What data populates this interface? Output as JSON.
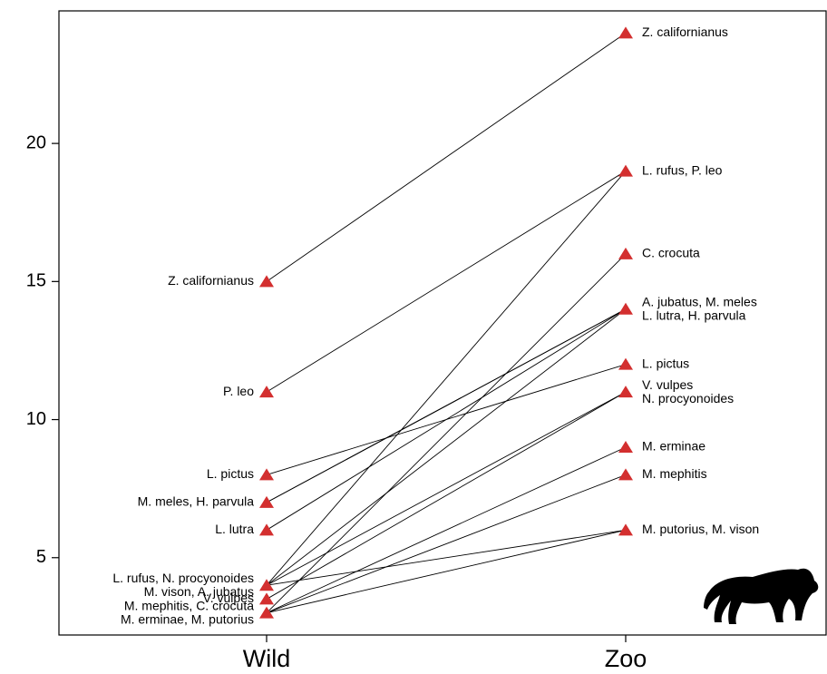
{
  "chart_data": {
    "type": "slope",
    "categories": [
      "Wild",
      "Zoo"
    ],
    "ylim": [
      2.2,
      24.8
    ],
    "yticks": [
      5,
      10,
      15,
      20
    ],
    "marker_color": "#d32f2f",
    "series": [
      {
        "values": [
          15,
          24
        ]
      },
      {
        "values": [
          11,
          19
        ]
      },
      {
        "values": [
          8,
          12
        ]
      },
      {
        "values": [
          7,
          14
        ]
      },
      {
        "values": [
          7,
          14
        ]
      },
      {
        "values": [
          6,
          14
        ]
      },
      {
        "values": [
          4,
          19
        ]
      },
      {
        "values": [
          4,
          11
        ]
      },
      {
        "values": [
          4,
          6
        ]
      },
      {
        "values": [
          4,
          14
        ]
      },
      {
        "values": [
          3.5,
          11
        ]
      },
      {
        "values": [
          3,
          8
        ]
      },
      {
        "values": [
          3,
          16
        ]
      },
      {
        "values": [
          3,
          9
        ]
      },
      {
        "values": [
          3,
          6
        ]
      }
    ],
    "points": [
      [
        {
          "value": 15,
          "labels": [
            "Z. californianus"
          ]
        },
        {
          "value": 11,
          "labels": [
            "P. leo"
          ]
        },
        {
          "value": 8,
          "labels": [
            "L. pictus"
          ]
        },
        {
          "value": 7,
          "labels": [
            "M. meles, H. parvula"
          ]
        },
        {
          "value": 6,
          "labels": [
            "L. lutra"
          ]
        },
        {
          "value": 4,
          "labels": [
            "L. rufus, N. procyonoides",
            "M. vison, A. jubatus"
          ]
        },
        {
          "value": 3.5,
          "labels": [
            "V. vulpes"
          ]
        },
        {
          "value": 3,
          "labels": [
            "M. mephitis, C. crocuta",
            "M. erminae, M. putorius"
          ]
        }
      ],
      [
        {
          "value": 24,
          "labels": [
            "Z. californianus"
          ]
        },
        {
          "value": 19,
          "labels": [
            "L. rufus,  P. leo"
          ]
        },
        {
          "value": 16,
          "labels": [
            "C. crocuta"
          ]
        },
        {
          "value": 14,
          "labels": [
            "A. jubatus, M. meles",
            "L. lutra,  H. parvula"
          ]
        },
        {
          "value": 12,
          "labels": [
            "L. pictus"
          ]
        },
        {
          "value": 11,
          "labels": [
            "V. vulpes",
            "N. procyonoides"
          ]
        },
        {
          "value": 9,
          "labels": [
            "M. erminae"
          ]
        },
        {
          "value": 8,
          "labels": [
            "M. mephitis"
          ]
        },
        {
          "value": 6,
          "labels": [
            "M. putorius,  M. vison"
          ]
        }
      ]
    ]
  }
}
